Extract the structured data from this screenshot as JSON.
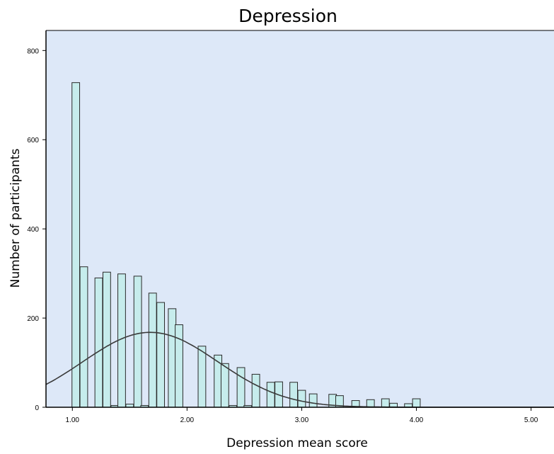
{
  "chart_data": {
    "type": "bar",
    "title": "Depression",
    "xlabel": "Depression mean score",
    "ylabel": "Number of participants",
    "xlim": [
      0.77,
      5.2
    ],
    "ylim": [
      0,
      845
    ],
    "x_ticks": [
      {
        "value": 1.0,
        "label": "1.00"
      },
      {
        "value": 2.0,
        "label": "2.00"
      },
      {
        "value": 3.0,
        "label": "3.00"
      },
      {
        "value": 4.0,
        "label": "4.00"
      },
      {
        "value": 5.0,
        "label": "5.00"
      }
    ],
    "y_ticks": [
      {
        "value": 0,
        "label": "0"
      },
      {
        "value": 200,
        "label": "200"
      },
      {
        "value": 400,
        "label": "400"
      },
      {
        "value": 600,
        "label": "600"
      },
      {
        "value": 800,
        "label": "800"
      }
    ],
    "bin_width": 0.0667,
    "bins": [
      {
        "x": 1.03,
        "value": 728
      },
      {
        "x": 1.1,
        "value": 315
      },
      {
        "x": 1.23,
        "value": 290
      },
      {
        "x": 1.3,
        "value": 303
      },
      {
        "x": 1.37,
        "value": 4
      },
      {
        "x": 1.43,
        "value": 299
      },
      {
        "x": 1.5,
        "value": 7
      },
      {
        "x": 1.57,
        "value": 294
      },
      {
        "x": 1.63,
        "value": 4
      },
      {
        "x": 1.7,
        "value": 256
      },
      {
        "x": 1.77,
        "value": 235
      },
      {
        "x": 1.87,
        "value": 221
      },
      {
        "x": 1.93,
        "value": 185
      },
      {
        "x": 2.13,
        "value": 137
      },
      {
        "x": 2.27,
        "value": 117
      },
      {
        "x": 2.33,
        "value": 98
      },
      {
        "x": 2.4,
        "value": 4
      },
      {
        "x": 2.47,
        "value": 89
      },
      {
        "x": 2.53,
        "value": 4
      },
      {
        "x": 2.6,
        "value": 74
      },
      {
        "x": 2.73,
        "value": 56
      },
      {
        "x": 2.8,
        "value": 57
      },
      {
        "x": 2.93,
        "value": 56
      },
      {
        "x": 3.0,
        "value": 38
      },
      {
        "x": 3.1,
        "value": 30
      },
      {
        "x": 3.27,
        "value": 29
      },
      {
        "x": 3.33,
        "value": 26
      },
      {
        "x": 3.47,
        "value": 15
      },
      {
        "x": 3.6,
        "value": 17
      },
      {
        "x": 3.73,
        "value": 19
      },
      {
        "x": 3.8,
        "value": 9
      },
      {
        "x": 3.93,
        "value": 8
      },
      {
        "x": 4.0,
        "value": 19
      }
    ],
    "normal_curve": {
      "mean": 1.68,
      "sd": 0.59,
      "peak": 168
    },
    "colors": {
      "plot_background": "#dde8f8",
      "bar_fill": "#c6ecec",
      "bar_stroke": "#2a2a2a",
      "curve": "#3a3a3a"
    },
    "grid": false,
    "legend": "none"
  }
}
